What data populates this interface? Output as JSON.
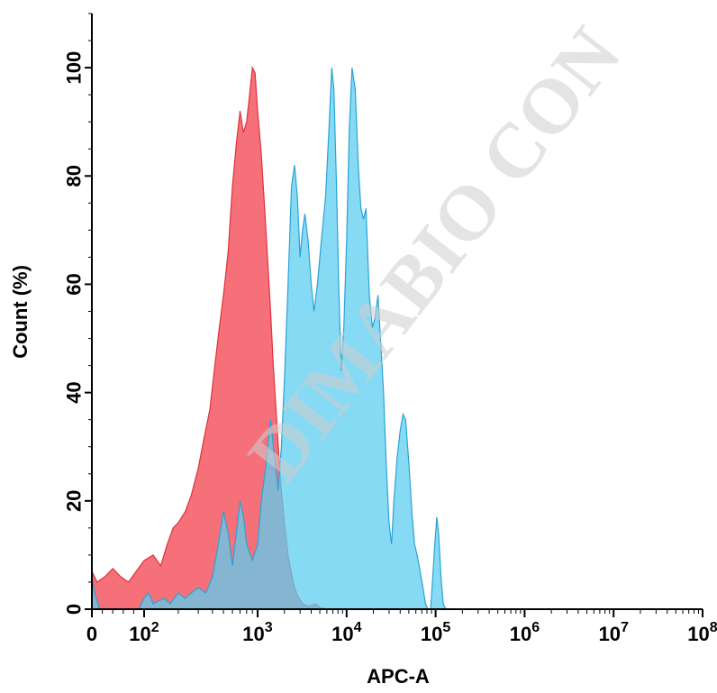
{
  "watermark": "DIMABIO CON",
  "chart_data": {
    "type": "area",
    "xlabel": "APC-A",
    "ylabel": "Count (%)",
    "x_scale": "biexponential",
    "xlim": [
      0,
      100000000
    ],
    "ylim": [
      0,
      110
    ],
    "grid": false,
    "legend": "none",
    "y_ticks": [
      0,
      20,
      40,
      60,
      80,
      100
    ],
    "x_ticks": [
      {
        "value": 0,
        "base": "0",
        "exp": ""
      },
      {
        "value": 100,
        "base": "10",
        "exp": "2"
      },
      {
        "value": 1000,
        "base": "10",
        "exp": "3"
      },
      {
        "value": 10000,
        "base": "10",
        "exp": "4"
      },
      {
        "value": 100000,
        "base": "10",
        "exp": "5"
      },
      {
        "value": 1000000,
        "base": "10",
        "exp": "6"
      },
      {
        "value": 10000000,
        "base": "10",
        "exp": "7"
      },
      {
        "value": 100000000,
        "base": "10",
        "exp": "8"
      }
    ],
    "series": [
      {
        "color": "#f4606a",
        "stroke": "#e0323c",
        "points": [
          [
            0,
            7
          ],
          [
            10,
            5
          ],
          [
            25,
            6
          ],
          [
            40,
            7.5
          ],
          [
            55,
            6
          ],
          [
            70,
            5
          ],
          [
            85,
            7
          ],
          [
            100,
            9
          ],
          [
            120,
            10
          ],
          [
            140,
            8
          ],
          [
            160,
            12
          ],
          [
            180,
            15
          ],
          [
            200,
            16
          ],
          [
            230,
            18
          ],
          [
            260,
            21
          ],
          [
            300,
            26
          ],
          [
            340,
            32
          ],
          [
            380,
            37
          ],
          [
            420,
            45
          ],
          [
            460,
            52
          ],
          [
            500,
            58
          ],
          [
            550,
            66
          ],
          [
            600,
            78
          ],
          [
            650,
            86
          ],
          [
            700,
            92
          ],
          [
            750,
            88
          ],
          [
            800,
            90
          ],
          [
            850,
            95
          ],
          [
            900,
            100
          ],
          [
            950,
            99
          ],
          [
            1000,
            92
          ],
          [
            1100,
            84
          ],
          [
            1200,
            74
          ],
          [
            1300,
            64
          ],
          [
            1400,
            55
          ],
          [
            1500,
            45
          ],
          [
            1650,
            34
          ],
          [
            1800,
            24
          ],
          [
            2000,
            16
          ],
          [
            2200,
            10
          ],
          [
            2500,
            5
          ],
          [
            2800,
            2.5
          ],
          [
            3200,
            1
          ],
          [
            3800,
            0.5
          ],
          [
            4500,
            1
          ],
          [
            5000,
            0.3
          ],
          [
            6000,
            0
          ],
          [
            100000000,
            0
          ]
        ]
      },
      {
        "color": "#5ecdf0",
        "stroke": "#2aa3d6",
        "points": [
          [
            0,
            6
          ],
          [
            5,
            3
          ],
          [
            15,
            0
          ],
          [
            90,
            0
          ],
          [
            100,
            2
          ],
          [
            110,
            3
          ],
          [
            120,
            1
          ],
          [
            150,
            2
          ],
          [
            170,
            1
          ],
          [
            200,
            3
          ],
          [
            230,
            2
          ],
          [
            260,
            3
          ],
          [
            300,
            4
          ],
          [
            350,
            3
          ],
          [
            400,
            6
          ],
          [
            450,
            12
          ],
          [
            500,
            18
          ],
          [
            550,
            14
          ],
          [
            600,
            8
          ],
          [
            650,
            14
          ],
          [
            700,
            20
          ],
          [
            750,
            17
          ],
          [
            800,
            12
          ],
          [
            900,
            9
          ],
          [
            1000,
            12
          ],
          [
            1100,
            20
          ],
          [
            1250,
            27
          ],
          [
            1400,
            35
          ],
          [
            1550,
            28
          ],
          [
            1700,
            22
          ],
          [
            1850,
            30
          ],
          [
            2000,
            42
          ],
          [
            2200,
            60
          ],
          [
            2400,
            78
          ],
          [
            2600,
            82
          ],
          [
            2800,
            76
          ],
          [
            3000,
            65
          ],
          [
            3200,
            70
          ],
          [
            3400,
            73
          ],
          [
            3700,
            68
          ],
          [
            4000,
            60
          ],
          [
            4300,
            55
          ],
          [
            4700,
            60
          ],
          [
            5200,
            68
          ],
          [
            5800,
            76
          ],
          [
            6300,
            88
          ],
          [
            6800,
            100
          ],
          [
            7200,
            96
          ],
          [
            7700,
            78
          ],
          [
            8200,
            58
          ],
          [
            8700,
            44
          ],
          [
            9300,
            52
          ],
          [
            10000,
            68
          ],
          [
            10700,
            88
          ],
          [
            11500,
            100
          ],
          [
            12500,
            96
          ],
          [
            13500,
            82
          ],
          [
            14500,
            74
          ],
          [
            15500,
            72
          ],
          [
            16500,
            74
          ],
          [
            18000,
            58
          ],
          [
            19500,
            52
          ],
          [
            21000,
            54
          ],
          [
            22500,
            58
          ],
          [
            24000,
            50
          ],
          [
            26000,
            40
          ],
          [
            28000,
            26
          ],
          [
            30000,
            16
          ],
          [
            32000,
            12
          ],
          [
            34000,
            20
          ],
          [
            37000,
            28
          ],
          [
            40000,
            33
          ],
          [
            43000,
            36
          ],
          [
            46000,
            35
          ],
          [
            50000,
            27
          ],
          [
            54000,
            18
          ],
          [
            58000,
            12
          ],
          [
            62000,
            10
          ],
          [
            67000,
            7
          ],
          [
            72000,
            4
          ],
          [
            77000,
            1
          ],
          [
            82000,
            0
          ],
          [
            88000,
            0
          ],
          [
            93000,
            6
          ],
          [
            98000,
            12
          ],
          [
            103000,
            17
          ],
          [
            108000,
            14
          ],
          [
            115000,
            6
          ],
          [
            122000,
            1
          ],
          [
            130000,
            0
          ],
          [
            100000000,
            0
          ]
        ]
      }
    ]
  }
}
